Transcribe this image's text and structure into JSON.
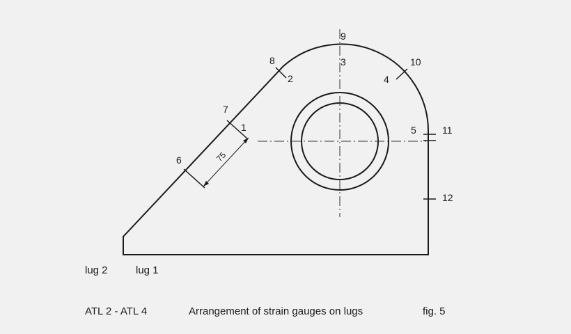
{
  "gauge_labels": {
    "g1": "1",
    "g2": "2",
    "g3": "3",
    "g4": "4",
    "g5": "5",
    "g6": "6",
    "g7": "7",
    "g8": "8",
    "g9": "9",
    "g10": "10",
    "g11": "11",
    "g12": "12"
  },
  "dimension": "75",
  "side_labels": {
    "lug2": "lug 2",
    "lug1": "lug 1"
  },
  "caption": {
    "code": "ATL 2 - ATL 4",
    "title": "Arrangement of strain gauges on lugs",
    "fig": "fig. 5"
  }
}
